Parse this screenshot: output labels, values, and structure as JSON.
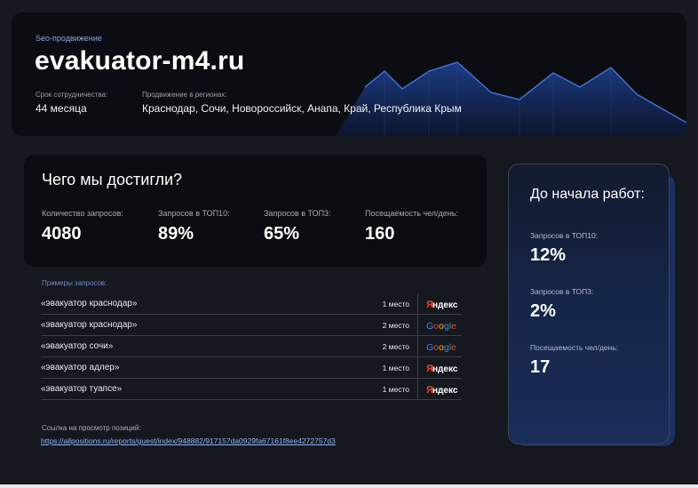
{
  "header": {
    "kicker": "Seo-продвижение",
    "site": "evakuator-m4.ru",
    "term_label": "Срок сотрудничества:",
    "term_value": "44 месяца",
    "regions_label": "Продвижение в регионах:",
    "regions_value": "Краснодар, Сочи, Новороссийск, Анапа, Край, Республика Крым"
  },
  "achievements": {
    "title": "Чего мы достигли?",
    "stats": [
      {
        "label": "Количество запросов:",
        "value": "4080"
      },
      {
        "label": "Запросов в ТОП10:",
        "value": "89%"
      },
      {
        "label": "Запросов в ТОП3:",
        "value": "65%"
      },
      {
        "label": "Посещаемость чел/день:",
        "value": "160"
      }
    ]
  },
  "examples": {
    "label": "Примеры запросов:",
    "rows": [
      {
        "query": "«эвакуатор краснодар»",
        "place": "1 место",
        "engine": "Яндекс"
      },
      {
        "query": "«эвакуатор краснодар»",
        "place": "2 место",
        "engine": "Google"
      },
      {
        "query": "«эвакуатор сочи»",
        "place": "2 место",
        "engine": "Google"
      },
      {
        "query": "«эвакуатор адлер»",
        "place": "1 место",
        "engine": "Яндекс"
      },
      {
        "query": "«эвакуатор туапсе»",
        "place": "1 место",
        "engine": "Яндекс"
      }
    ]
  },
  "positions_link": {
    "label": "Ссылка на просмотр позиций:",
    "url": "https://allpositions.ru/reports/guest/index/948882/917157da0929fa67161f8ee4272757d3"
  },
  "before": {
    "title": "До начала работ:",
    "stats": [
      {
        "label": "Запросов в ТОП10:",
        "value": "12%"
      },
      {
        "label": "Запросов в ТОП3:",
        "value": "2%"
      },
      {
        "label": "Посещаемость чел/день:",
        "value": "17"
      }
    ]
  },
  "colors": {
    "accent_blue": "#6f87c9",
    "yandex_red": "#fc3f1d",
    "google_blue": "#4285f4",
    "google_red": "#ea4335",
    "google_yellow": "#fbbc05",
    "google_green": "#34a853"
  }
}
